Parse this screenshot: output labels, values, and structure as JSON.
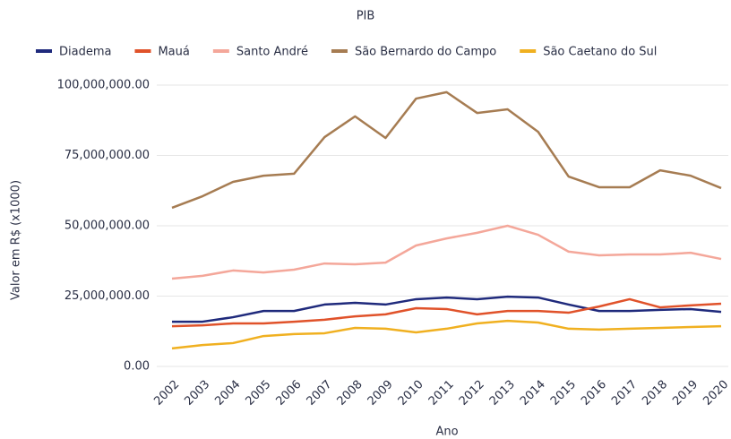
{
  "chart_data": {
    "type": "line",
    "title": "PIB",
    "x_label": "Ano",
    "y_label": "Valor em R$ (x1000)",
    "categories": [
      "2002",
      "2003",
      "2004",
      "2005",
      "2006",
      "2007",
      "2008",
      "2009",
      "2010",
      "2011",
      "2012",
      "2013",
      "2014",
      "2015",
      "2016",
      "2017",
      "2018",
      "2019",
      "2020"
    ],
    "series": [
      {
        "name": "Diadema",
        "color": "#1f2a7c",
        "values": [
          15900000,
          15900000,
          17500000,
          19700000,
          19700000,
          22000000,
          22600000,
          22000000,
          23900000,
          24500000,
          23900000,
          24800000,
          24500000,
          22000000,
          19700000,
          19700000,
          20100000,
          20400000,
          19400000
        ]
      },
      {
        "name": "Mauá",
        "color": "#e0522a",
        "values": [
          14300000,
          14600000,
          15300000,
          15300000,
          15900000,
          16600000,
          17800000,
          18500000,
          20700000,
          20400000,
          18500000,
          19700000,
          19700000,
          19100000,
          21300000,
          23900000,
          21000000,
          21700000,
          22300000
        ]
      },
      {
        "name": "Santo André",
        "color": "#f4a79a",
        "values": [
          31200000,
          32200000,
          34100000,
          33400000,
          34400000,
          36600000,
          36300000,
          36900000,
          43000000,
          45500000,
          47500000,
          50000000,
          46800000,
          40800000,
          39500000,
          39800000,
          39800000,
          40400000,
          38200000
        ]
      },
      {
        "name": "São Bernardo do Campo",
        "color": "#a67c52",
        "values": [
          56400000,
          60500000,
          65600000,
          67800000,
          68500000,
          81500000,
          88900000,
          81200000,
          95200000,
          97500000,
          90100000,
          91400000,
          83400000,
          67500000,
          63700000,
          63700000,
          69700000,
          67800000,
          63400000
        ]
      },
      {
        "name": "São Caetano do Sul",
        "color": "#f0b020",
        "values": [
          6400000,
          7600000,
          8300000,
          10800000,
          11500000,
          11800000,
          13700000,
          13400000,
          12100000,
          13400000,
          15300000,
          16200000,
          15600000,
          13400000,
          13100000,
          13400000,
          13700000,
          14000000,
          14300000
        ]
      }
    ],
    "ylim": [
      0,
      100000000
    ],
    "yticks": [
      {
        "value": 0,
        "label": "0.00"
      },
      {
        "value": 25000000,
        "label": "25,000,000.00"
      },
      {
        "value": 50000000,
        "label": "50,000,000.00"
      },
      {
        "value": 75000000,
        "label": "75,000,000.00"
      },
      {
        "value": 100000000,
        "label": "100,000,000.00"
      }
    ],
    "grid": true,
    "legend": "top"
  }
}
